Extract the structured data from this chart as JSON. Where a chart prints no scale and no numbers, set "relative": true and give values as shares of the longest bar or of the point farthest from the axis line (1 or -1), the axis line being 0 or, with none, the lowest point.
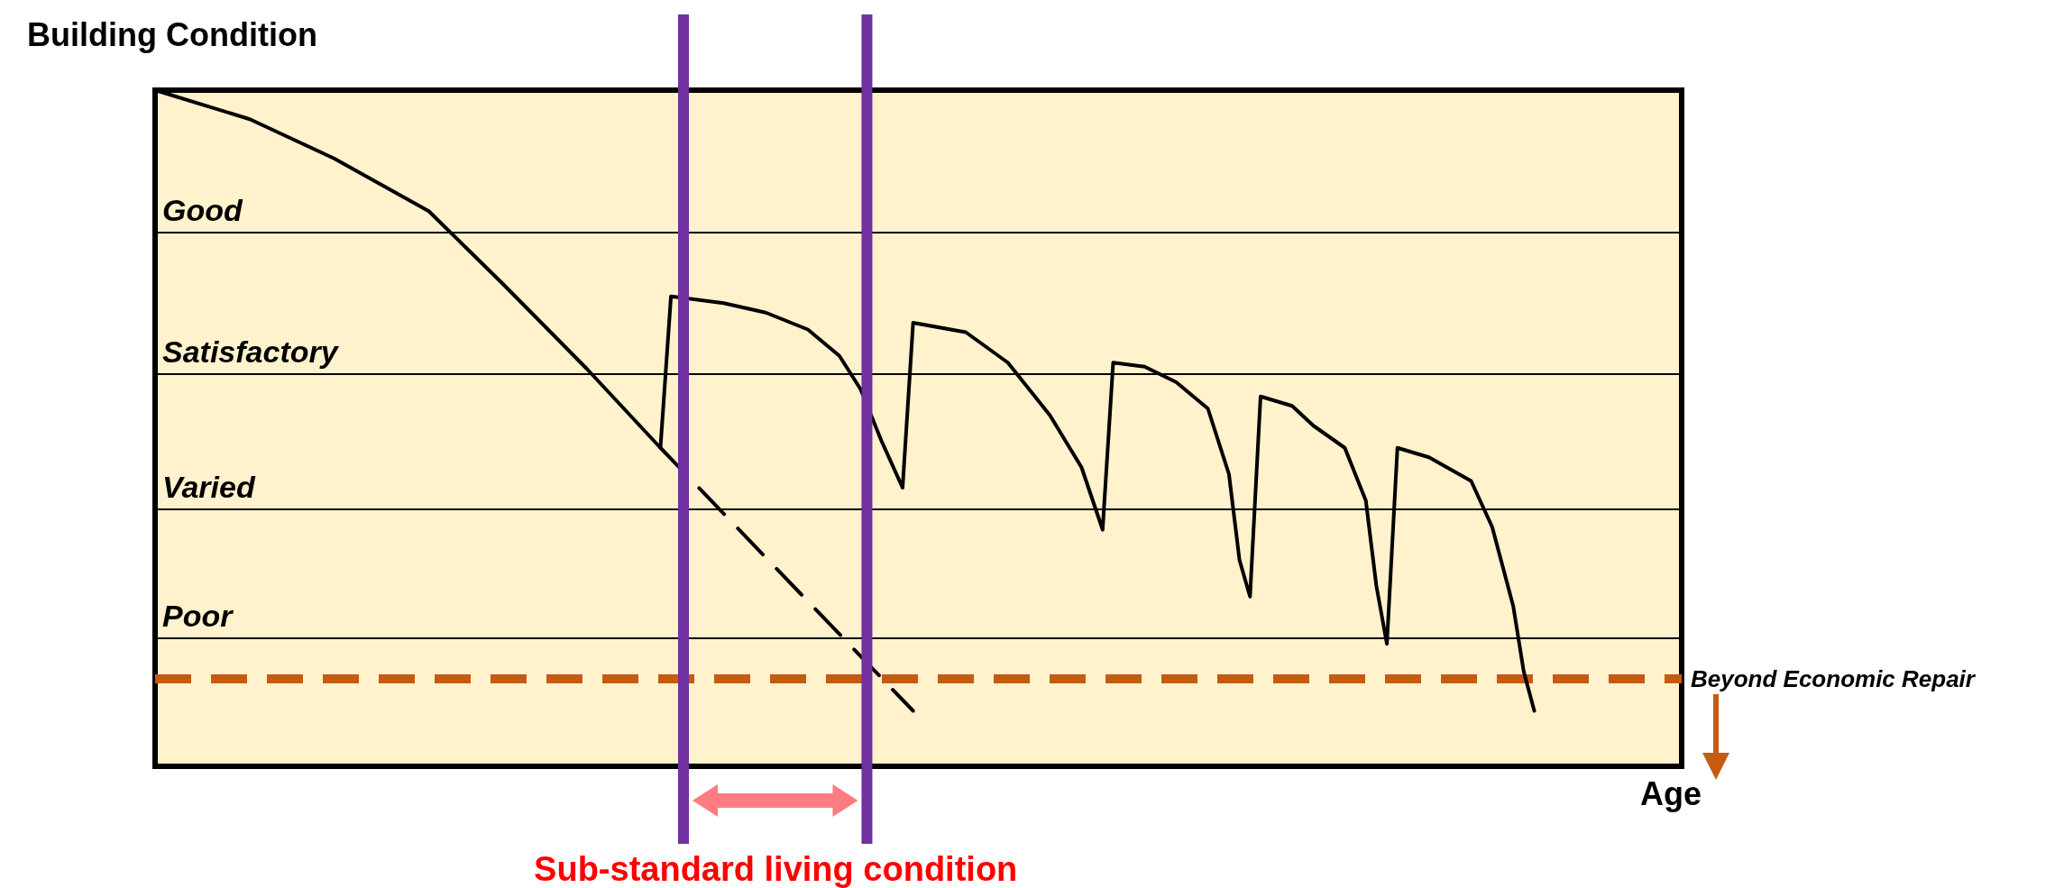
{
  "chart_data": {
    "type": "line",
    "relative": true,
    "ylabel": "Building Condition",
    "xlabel": "Age",
    "annotations": [
      "Sub-standard living condition"
    ],
    "marker": "none",
    "categories": [
      null,
      null,
      null,
      null,
      null,
      null,
      null,
      null,
      null,
      null,
      null,
      null,
      null,
      null,
      null,
      null,
      null,
      null,
      null,
      null,
      null,
      null,
      null,
      null,
      null,
      null,
      null,
      null,
      null,
      null,
      null,
      null,
      null,
      null,
      null,
      null,
      null,
      null,
      null,
      null,
      null,
      null,
      null,
      null,
      null,
      null,
      null,
      null,
      null,
      null,
      null,
      null,
      null,
      null,
      null,
      null,
      null,
      null,
      null,
      null,
      null,
      null,
      null,
      null,
      null,
      null,
      null,
      null,
      null,
      null,
      null,
      null,
      null,
      null,
      null,
      null,
      null,
      null,
      null,
      null,
      null,
      null,
      null,
      null,
      null,
      null,
      null,
      null,
      null,
      null,
      null,
      null,
      null,
      null,
      null,
      null,
      null,
      null,
      null,
      null,
      null,
      null,
      null,
      null,
      null,
      null,
      null,
      null,
      null,
      null,
      null,
      null,
      null,
      null,
      null,
      null,
      null,
      null,
      null,
      null,
      null,
      null,
      null,
      null,
      null,
      null,
      null,
      null,
      null,
      null,
      null,
      null,
      null,
      null,
      null,
      null,
      null,
      null,
      null,
      null,
      null,
      null,
      null,
      null,
      null,
      null
    ],
    "series": [
      {
        "color": "#000000",
        "line_style": "solid",
        "values": [
          1,
          null,
          null,
          null,
          null,
          null,
          null,
          null,
          null,
          0.957,
          null,
          null,
          null,
          null,
          null,
          null,
          null,
          0.899,
          null,
          null,
          null,
          null,
          null,
          null,
          null,
          null,
          0.821,
          null,
          null,
          null,
          null,
          null,
          null,
          0.714,
          null,
          null,
          null,
          null,
          null,
          null,
          null,
          0.588,
          null,
          null,
          null,
          null,
          null,
          null,
          0.471,
          0.695,
          null,
          null,
          null,
          null,
          0.685,
          null,
          null,
          null,
          0.671,
          null,
          null,
          null,
          0.646,
          null,
          null,
          0.607,
          null,
          0.558,
          null,
          0.481,
          null,
          0.412,
          0.656,
          null,
          null,
          null,
          null,
          0.642,
          null,
          null,
          null,
          0.597,
          null,
          null,
          null,
          0.519,
          null,
          null,
          0.442,
          null,
          0.35,
          0.597,
          null,
          null,
          0.591,
          null,
          null,
          0.568,
          null,
          null,
          0.529,
          null,
          0.432,
          0.305,
          0.251,
          0.547,
          null,
          null,
          0.533,
          null,
          0.504,
          null,
          null,
          0.471,
          null,
          0.393,
          0.267,
          0.181,
          0.471,
          null,
          null,
          0.457,
          null,
          null,
          null,
          0.422,
          null,
          0.354,
          null,
          0.237,
          0.14,
          0.082,
          null,
          null,
          null,
          null,
          null,
          null,
          null,
          null,
          null,
          null,
          null,
          null,
          null,
          null
        ]
      },
      {
        "color": "#000000",
        "line_style": "dashed",
        "values": [
          null,
          null,
          null,
          null,
          null,
          null,
          null,
          null,
          null,
          null,
          null,
          null,
          null,
          null,
          null,
          null,
          null,
          null,
          null,
          null,
          null,
          null,
          null,
          null,
          null,
          null,
          null,
          null,
          null,
          null,
          null,
          null,
          null,
          null,
          null,
          null,
          null,
          null,
          null,
          null,
          null,
          null,
          null,
          null,
          null,
          null,
          null,
          null,
          0.471,
          null,
          null,
          null,
          null,
          null,
          null,
          null,
          null,
          null,
          null,
          null,
          null,
          null,
          null,
          null,
          null,
          null,
          null,
          null,
          null,
          null,
          null,
          null,
          0.082,
          null,
          null,
          null,
          null,
          null,
          null,
          null,
          null,
          null,
          null,
          null,
          null,
          null,
          null,
          null,
          null,
          null,
          null,
          null,
          null,
          null,
          null,
          null,
          null,
          null,
          null,
          null,
          null,
          null,
          null,
          null,
          null,
          null,
          null,
          null,
          null,
          null,
          null,
          null,
          null,
          null,
          null,
          null,
          null,
          null,
          null,
          null,
          null,
          null,
          null,
          null,
          null,
          null,
          null,
          null,
          null,
          null,
          null,
          null,
          null,
          null,
          null,
          null,
          null,
          null,
          null,
          null,
          null,
          null,
          null,
          null,
          null,
          null
        ]
      }
    ],
    "ref_lines": [
      {
        "axis": "y",
        "value": 0.792,
        "label": "Good",
        "color": "#000000"
      },
      {
        "axis": "y",
        "value": 0.578,
        "label": "Satisfactory",
        "color": "#000000"
      },
      {
        "axis": "y",
        "value": 0.381,
        "label": "Varied",
        "color": "#000000"
      },
      {
        "axis": "y",
        "value": 0.187,
        "label": "Poor",
        "color": "#000000"
      },
      {
        "axis": "y",
        "value": 0.128,
        "label": "Beyond Economic Repair",
        "color": "#c55a11",
        "line_style": "dashed"
      }
    ]
  }
}
